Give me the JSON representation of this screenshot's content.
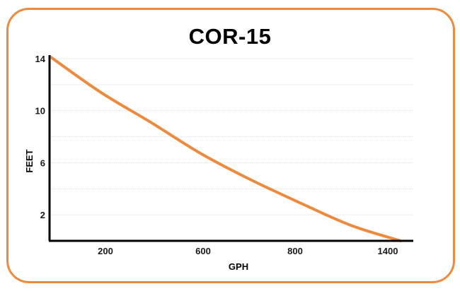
{
  "chart_data": {
    "type": "line",
    "title": "COR-15",
    "xlabel": "GPH",
    "ylabel": "FEET",
    "x_ticks": [
      "200",
      "600",
      "800",
      "1400"
    ],
    "y_ticks": [
      14,
      10,
      6,
      2
    ],
    "ylim": [
      0,
      14
    ],
    "grid": true,
    "line_color": "#ee8a3e",
    "frame_color": "#ee8a3e",
    "series": [
      {
        "x_position": [
          0,
          0.143,
          0.286,
          0.429,
          0.571,
          0.714,
          0.857,
          1.0
        ],
        "values": [
          14.1,
          11.4,
          9.1,
          6.7,
          4.7,
          2.9,
          1.2,
          0.0
        ]
      }
    ]
  }
}
